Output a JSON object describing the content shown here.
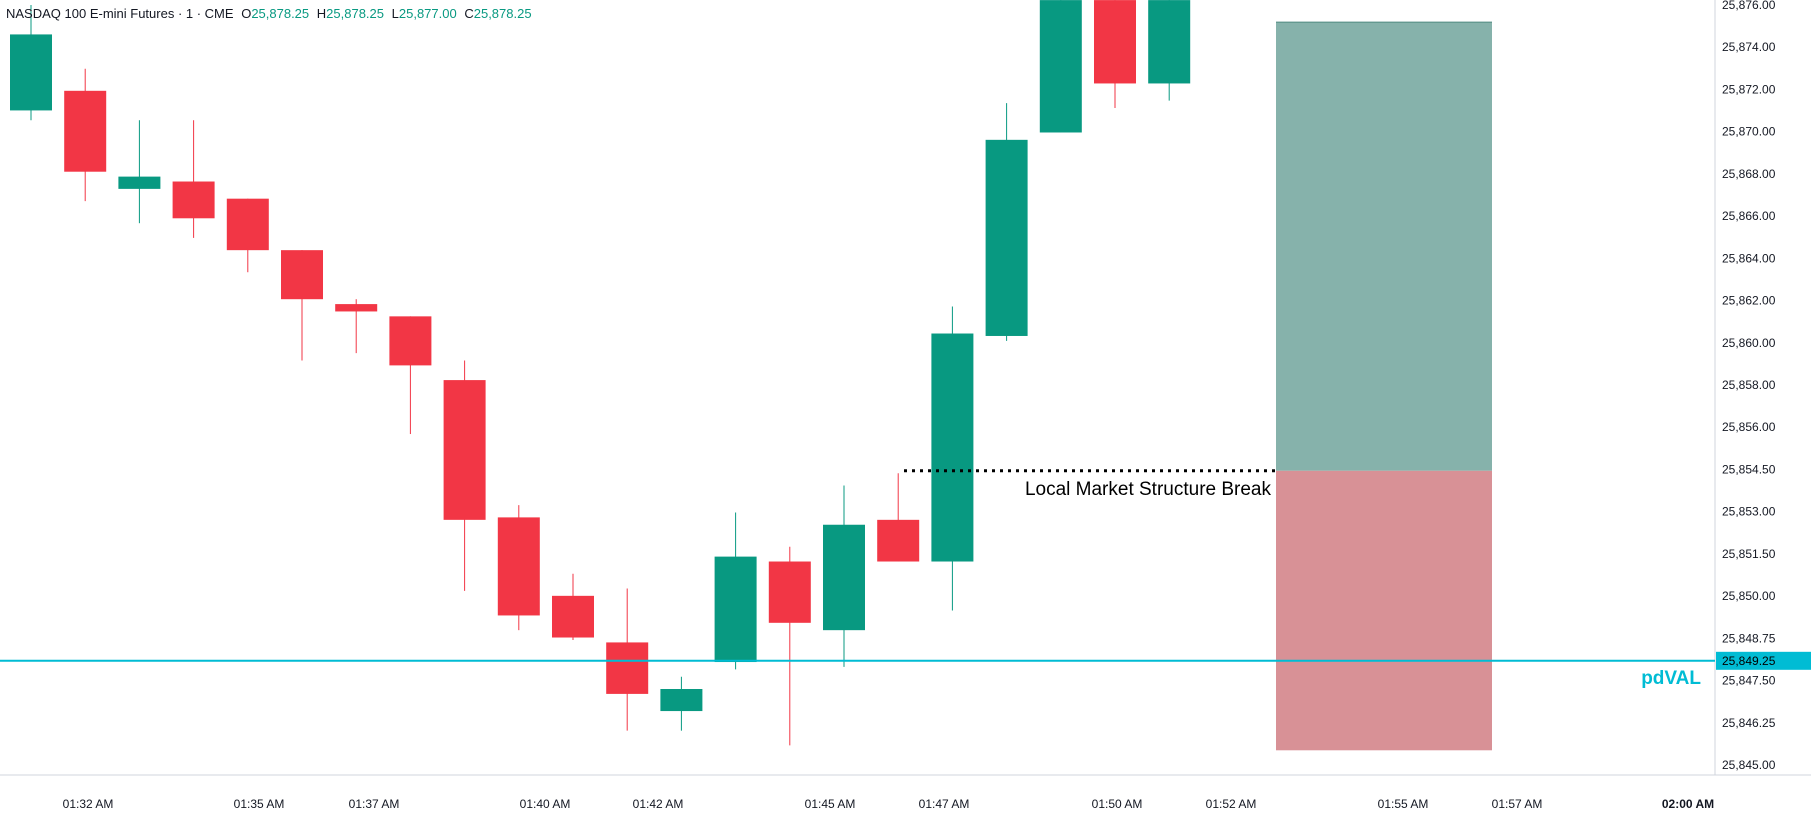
{
  "header": {
    "symbol": "NASDAQ 100 E-mini Futures · 1 · CME",
    "o_key": "O",
    "o_val": "25,878.25",
    "h_key": "H",
    "h_val": "25,878.25",
    "l_key": "L",
    "l_val": "25,877.00",
    "c_key": "C",
    "c_val": "25,878.25"
  },
  "colors": {
    "up": "#089981",
    "down": "#f23645",
    "pdval": "#00bcd4",
    "target_zone": "#86b2ab",
    "stop_zone": "#d89196",
    "axis_text": "#131722"
  },
  "chart_data": {
    "type": "candlestick",
    "x_labels": [
      "01:32 AM",
      "01:35 AM",
      "01:37 AM",
      "01:40 AM",
      "01:42 AM",
      "01:45 AM",
      "01:47 AM",
      "01:50 AM",
      "01:52 AM",
      "01:55 AM",
      "01:57 AM",
      "02:00 AM"
    ],
    "y_ticks": [
      "25,876.00",
      "25,874.00",
      "25,872.00",
      "25,870.00",
      "25,868.00",
      "25,866.00",
      "25,864.00",
      "25,862.00",
      "25,860.00",
      "25,858.00",
      "25,856.00",
      "25,854.50",
      "25,853.00",
      "25,851.50",
      "25,850.00",
      "25,848.75",
      "25,847.50",
      "25,846.25",
      "25,845.00"
    ],
    "ylim": [
      25844.3,
      25876.2
    ],
    "candles": [
      {
        "o": 25871.7,
        "h": 25876.0,
        "l": 25871.3,
        "c": 25874.8
      },
      {
        "o": 25872.5,
        "h": 25873.4,
        "l": 25868.0,
        "c": 25869.2
      },
      {
        "o": 25868.5,
        "h": 25871.3,
        "l": 25867.1,
        "c": 25869.0
      },
      {
        "o": 25868.8,
        "h": 25871.3,
        "l": 25866.5,
        "c": 25867.3
      },
      {
        "o": 25868.1,
        "h": 25868.1,
        "l": 25865.1,
        "c": 25866.0
      },
      {
        "o": 25866.0,
        "h": 25866.0,
        "l": 25861.5,
        "c": 25864.0
      },
      {
        "o": 25863.8,
        "h": 25864.0,
        "l": 25861.8,
        "c": 25863.5
      },
      {
        "o": 25863.3,
        "h": 25863.3,
        "l": 25858.5,
        "c": 25861.3
      },
      {
        "o": 25860.7,
        "h": 25861.5,
        "l": 25852.1,
        "c": 25855.0
      },
      {
        "o": 25855.1,
        "h": 25855.6,
        "l": 25850.5,
        "c": 25851.1
      },
      {
        "o": 25851.9,
        "h": 25852.8,
        "l": 25850.1,
        "c": 25850.2
      },
      {
        "o": 25850.0,
        "h": 25852.2,
        "l": 25846.4,
        "c": 25847.9
      },
      {
        "o": 25847.2,
        "h": 25848.6,
        "l": 25846.4,
        "c": 25848.1
      },
      {
        "o": 25849.2,
        "h": 25855.3,
        "l": 25848.9,
        "c": 25853.5
      },
      {
        "o": 25853.3,
        "h": 25853.9,
        "l": 25845.8,
        "c": 25850.8
      },
      {
        "o": 25850.5,
        "h": 25856.4,
        "l": 25849.0,
        "c": 25854.8
      },
      {
        "o": 25855.0,
        "h": 25856.9,
        "l": 25853.3,
        "c": 25853.3
      },
      {
        "o": 25853.3,
        "h": 25863.7,
        "l": 25851.3,
        "c": 25862.6
      },
      {
        "o": 25862.5,
        "h": 25872.0,
        "l": 25862.3,
        "c": 25870.5
      },
      {
        "o": 25870.8,
        "h": 25876.2,
        "l": 25870.8,
        "c": 25876.2
      },
      {
        "o": 25876.2,
        "h": 25876.2,
        "l": 25871.8,
        "c": 25872.8
      },
      {
        "o": 25872.8,
        "h": 25876.2,
        "l": 25872.1,
        "c": 25876.2
      }
    ],
    "annotation": {
      "text": "Local Market Structure Break",
      "level": 25857.0
    },
    "pdval": {
      "label": "pdVAL",
      "price": 25849.25,
      "price_label": "25,849.25"
    },
    "position": {
      "entry": 25857.0,
      "target": 25875.3,
      "stop": 25845.6
    }
  }
}
